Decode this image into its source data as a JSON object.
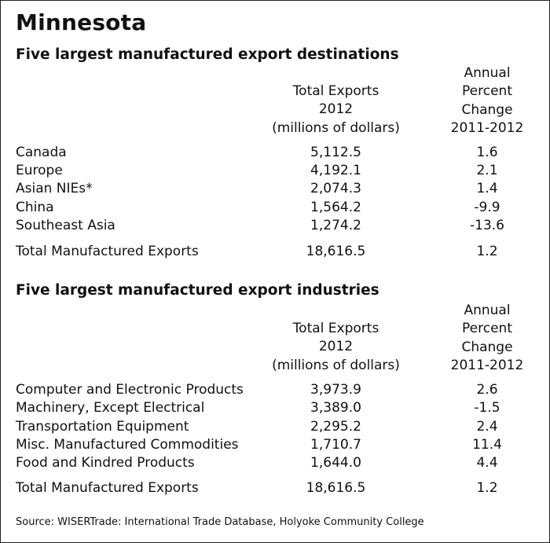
{
  "title": "Minnesota",
  "sections": [
    {
      "title": "Five largest manufactured export destinations",
      "header_total": [
        "Total Exports",
        "2012",
        "(millions of dollars)"
      ],
      "header_pct": [
        "Annual",
        "Percent",
        "Change",
        "2011-2012"
      ],
      "rows": [
        {
          "label": "Canada",
          "value": "5,112.5",
          "pct": "1.6"
        },
        {
          "label": "Europe",
          "value": "4,192.1",
          "pct": "2.1"
        },
        {
          "label": "Asian NIEs*",
          "value": "2,074.3",
          "pct": "1.4"
        },
        {
          "label": "China",
          "value": "1,564.2",
          "pct": "-9.9"
        },
        {
          "label": "Southeast Asia",
          "value": "1,274.2",
          "pct": "-13.6"
        }
      ],
      "total": {
        "label": "Total Manufactured Exports",
        "value": "18,616.5",
        "pct": "1.2"
      }
    },
    {
      "title": "Five largest manufactured export industries",
      "header_total": [
        "Total Exports",
        "2012",
        "(millions of dollars)"
      ],
      "header_pct": [
        "Annual",
        "Percent",
        "Change",
        "2011-2012"
      ],
      "rows": [
        {
          "label": "Computer and Electronic Products",
          "value": "3,973.9",
          "pct": "2.6"
        },
        {
          "label": "Machinery, Except Electrical",
          "value": "3,389.0",
          "pct": "-1.5"
        },
        {
          "label": "Transportation Equipment",
          "value": "2,295.2",
          "pct": "2.4"
        },
        {
          "label": "Misc. Manufactured Commodities",
          "value": "1,710.7",
          "pct": "11.4"
        },
        {
          "label": "Food and Kindred Products",
          "value": "1,644.0",
          "pct": "4.4"
        }
      ],
      "total": {
        "label": "Total Manufactured Exports",
        "value": "18,616.5",
        "pct": "1.2"
      }
    }
  ],
  "source": "Source: WISERTrade: International Trade Database, Holyoke Community College"
}
